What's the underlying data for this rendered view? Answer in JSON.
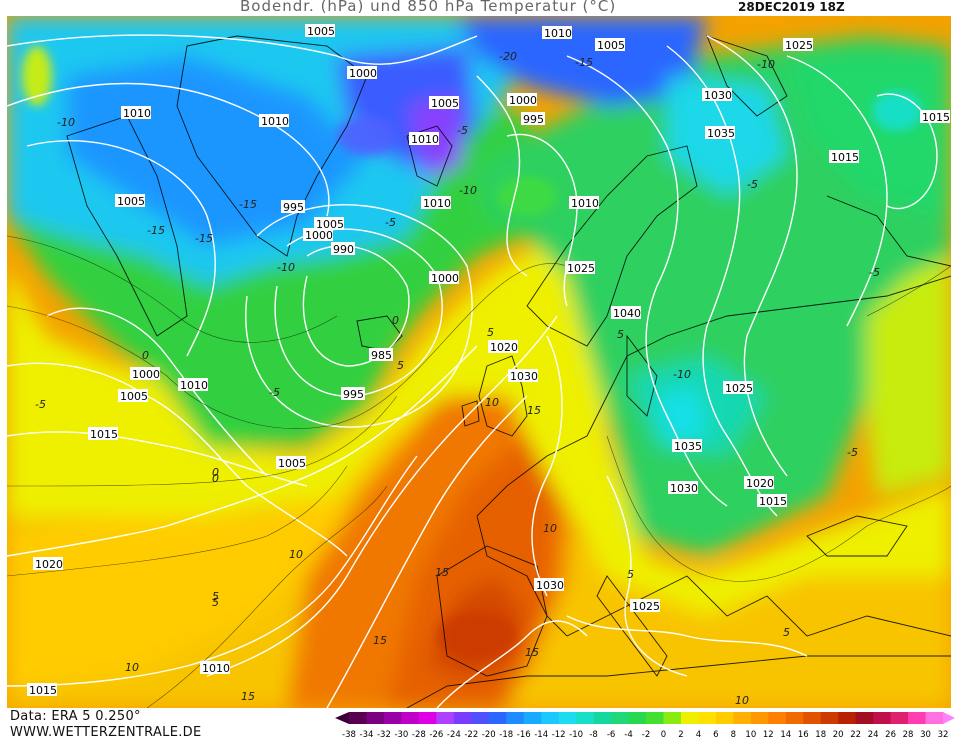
{
  "header": {
    "title": "Bodendr. (hPa) und 850 hPa Temperatur (°C)",
    "timestamp": "28DEC2019 18Z"
  },
  "footer": {
    "data_source": "Data: ERA 5 0.250°",
    "website": "WWW.WETTERZENTRALE.DE"
  },
  "legend": {
    "labels": [
      "-38",
      "-34",
      "-32",
      "-30",
      "-28",
      "-26",
      "-24",
      "-22",
      "-20",
      "-18",
      "-16",
      "-14",
      "-12",
      "-10",
      "-8",
      "-6",
      "-4",
      "-2",
      "0",
      "2",
      "4",
      "6",
      "8",
      "10",
      "12",
      "14",
      "16",
      "18",
      "20",
      "22",
      "24",
      "26",
      "28",
      "30",
      "32"
    ],
    "colors": [
      "#5a0050",
      "#7a0080",
      "#9a00a8",
      "#c000c8",
      "#e000e6",
      "#b040ff",
      "#7a3cff",
      "#5050ff",
      "#2a66ff",
      "#1e8cff",
      "#18aaff",
      "#1cc8ff",
      "#1edcf0",
      "#18e0c8",
      "#14d8a0",
      "#20d878",
      "#28d850",
      "#44e030",
      "#88ec10",
      "#eef000",
      "#ffe000",
      "#ffcc00",
      "#ffb000",
      "#ff9800",
      "#ff8000",
      "#f06a00",
      "#e05400",
      "#cc3a00",
      "#b82200",
      "#a01020",
      "#c0104a",
      "#e0206e",
      "#ff3cb0",
      "#ff70e0"
    ],
    "left_arrow_color": "#3a0036",
    "right_arrow_color": "#ff80ff"
  },
  "map": {
    "pressure_labels": [
      "1005",
      "1010",
      "1005",
      "1000",
      "1010",
      "1010",
      "1005",
      "1025",
      "1010",
      "1010",
      "1015",
      "1005",
      "1010",
      "995",
      "1005",
      "1000",
      "990",
      "1010",
      "995",
      "1000",
      "1010",
      "1005",
      "1030",
      "1035",
      "1015",
      "1025",
      "1040",
      "1000",
      "1020",
      "985",
      "1030",
      "995",
      "1000",
      "1005",
      "1015",
      "1010",
      "1025",
      "1035",
      "1030",
      "1020",
      "1015",
      "1005",
      "1020",
      "1030",
      "1025",
      "1010",
      "1015"
    ],
    "temperature_labels": [
      "-10",
      "-15",
      "-20",
      "-15",
      "-10",
      "-5",
      "-5",
      "-10",
      "-15",
      "-10",
      "-5",
      "0",
      "0",
      "0",
      "-5",
      "5",
      "5",
      "10",
      "15",
      "10",
      "5",
      "-5",
      "0",
      "-5",
      "-10",
      "-5",
      "5",
      "10",
      "15",
      "15",
      "5",
      "10",
      "15",
      "5",
      "10",
      "15",
      "5",
      "-15"
    ]
  }
}
